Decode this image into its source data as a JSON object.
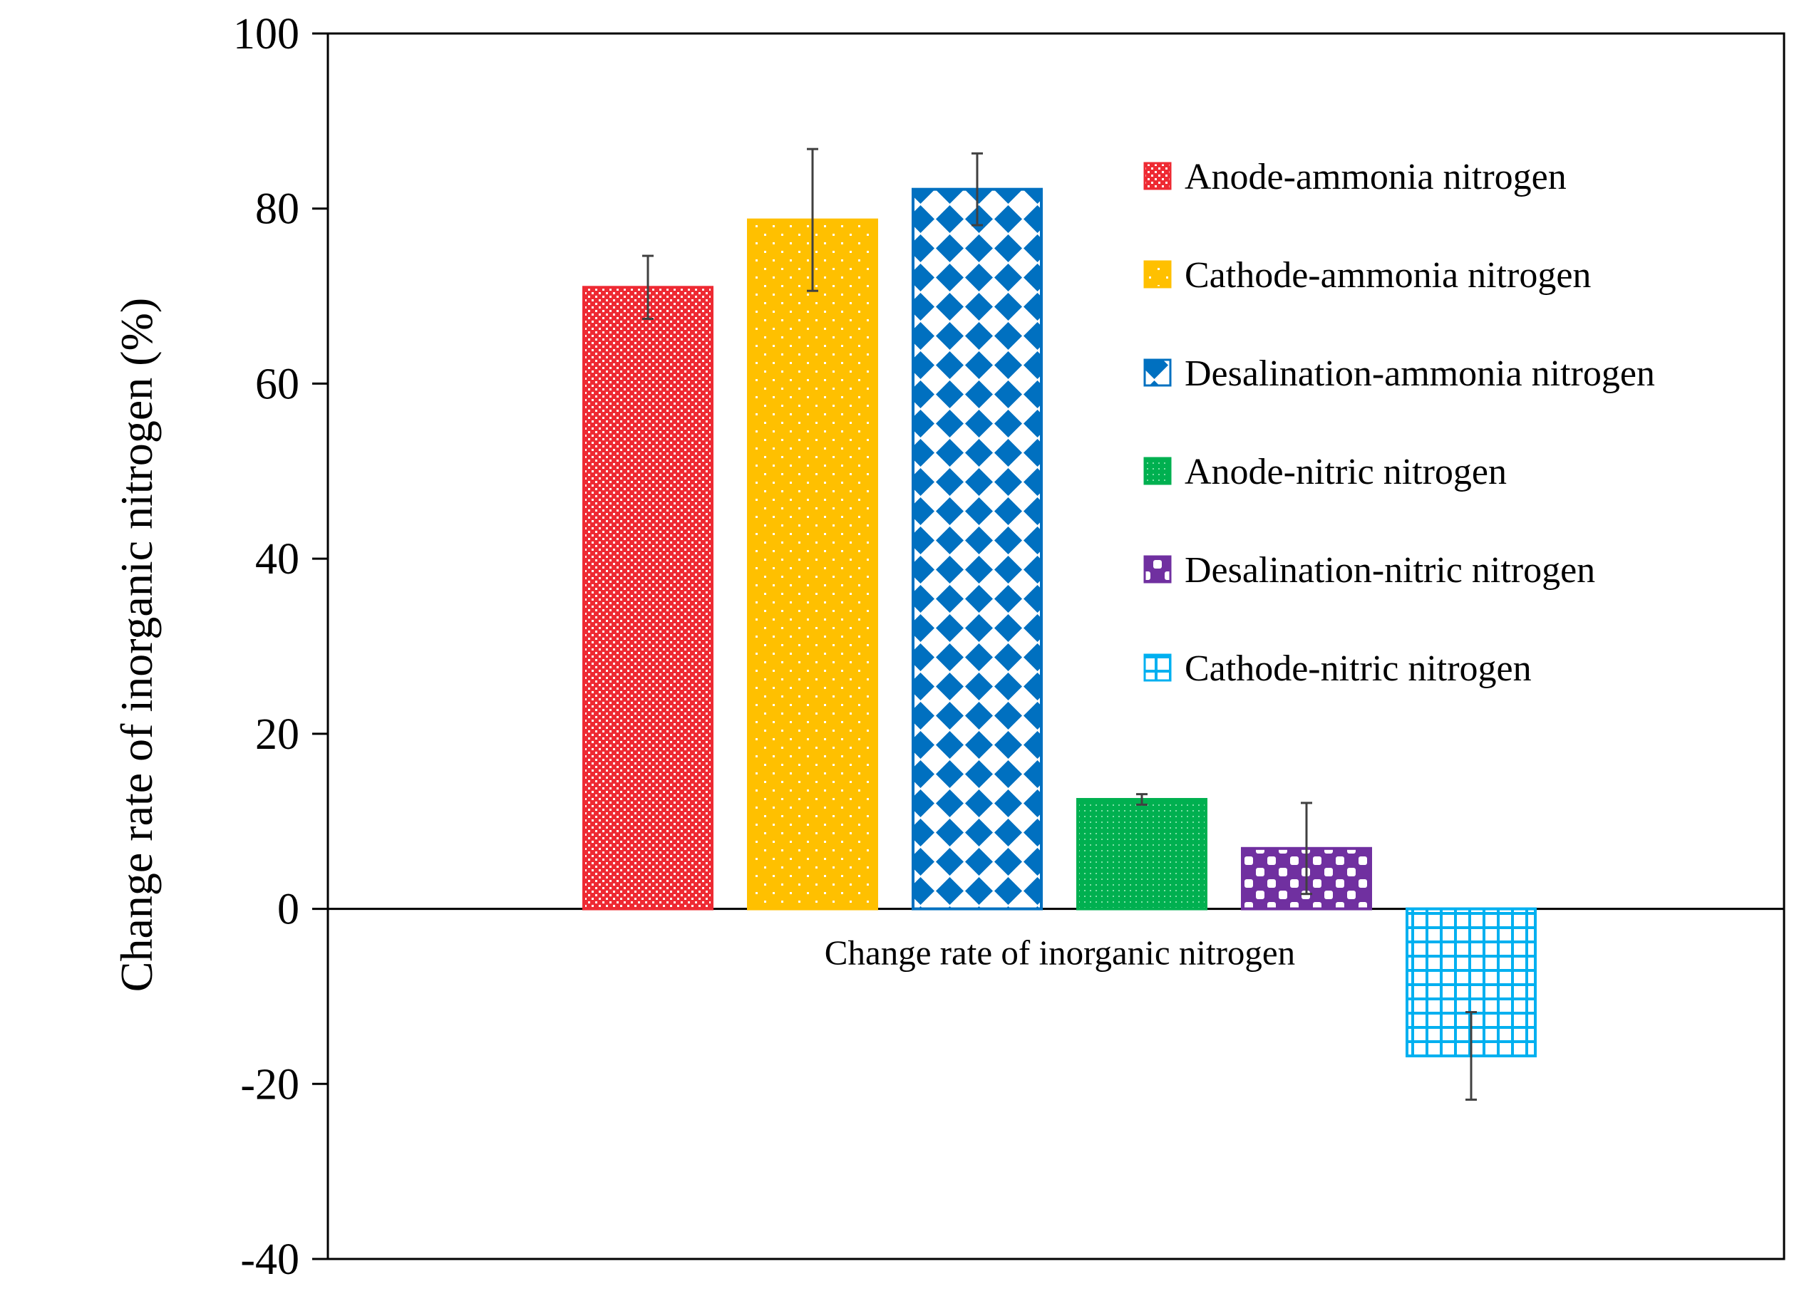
{
  "chart_data": {
    "type": "bar",
    "title": "",
    "xlabel": "Change rate of  inorganic nitrogen",
    "ylabel": "Change rate of  inorganic nitrogen  (%)",
    "ylim": [
      -40,
      100
    ],
    "yticks": [
      {
        "value": 100,
        "label": "100"
      },
      {
        "value": 80,
        "label": "80"
      },
      {
        "value": 60,
        "label": "60"
      },
      {
        "value": 40,
        "label": "40"
      },
      {
        "value": 20,
        "label": "20"
      },
      {
        "value": 0,
        "label": "0"
      },
      {
        "value": -20,
        "label": "-20"
      },
      {
        "value": -40,
        "label": "-40"
      }
    ],
    "grid": false,
    "legend_position": "top-right",
    "series": [
      {
        "name": "Anode-ammonia nitrogen",
        "value": 71,
        "error": 3.6,
        "color": "#ee2a33",
        "pattern": "checker-dots"
      },
      {
        "name": "Cathode-ammonia nitrogen",
        "value": 78.7,
        "error": 8.1,
        "color": "#ffc000",
        "pattern": "sparse-dots"
      },
      {
        "name": "Desalination-ammonia nitrogen",
        "value": 82.2,
        "error": 4.1,
        "color": "#0070c0",
        "pattern": "diamonds"
      },
      {
        "name": "Anode-nitric nitrogen",
        "value": 12.5,
        "error": 0.6,
        "color": "#00b050",
        "pattern": "fine-dots"
      },
      {
        "name": "Desalination-nitric nitrogen",
        "value": 6.9,
        "error": 5.2,
        "color": "#7030a0",
        "pattern": "checker"
      },
      {
        "name": "Cathode-nitric nitrogen",
        "value": -16.8,
        "error": 5.0,
        "color": "#00b0f0",
        "pattern": "grid"
      }
    ]
  }
}
